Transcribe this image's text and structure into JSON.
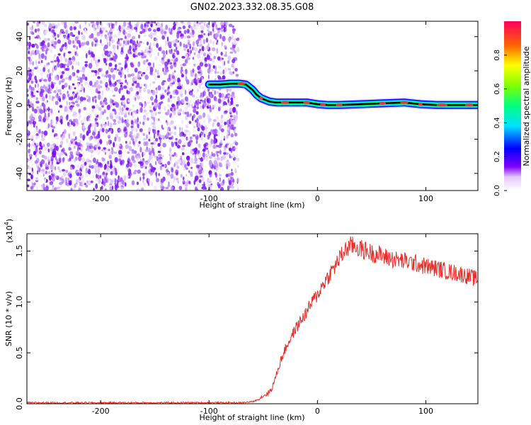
{
  "title": "GN02.2023.332.08.35.G08",
  "chart_data": [
    {
      "type": "heatmap",
      "xlabel": "Height of straight line (km)",
      "ylabel": "Frequency (Hz)",
      "xlim": [
        -268,
        148
      ],
      "ylim": [
        -50,
        49
      ],
      "xticks": [
        -200,
        -100,
        0,
        100
      ],
      "yticks": [
        -40,
        -20,
        0,
        20,
        40
      ],
      "noise_region_x": [
        -268,
        -77
      ],
      "signal_trace": {
        "x": [
          -100,
          -90,
          -80,
          -72,
          -66,
          -60,
          -56,
          -52,
          -48,
          -44,
          -38,
          -30,
          -20,
          -10,
          0,
          10,
          20,
          40,
          60,
          80,
          95,
          110,
          130,
          148
        ],
        "y": [
          12,
          12,
          12.5,
          12.5,
          12,
          9,
          6,
          4,
          3,
          2,
          1.5,
          1.5,
          1.5,
          1.5,
          0.5,
          0,
          0,
          0.5,
          1,
          1.5,
          0.5,
          0,
          0,
          0
        ]
      },
      "colorbar": {
        "label": "Normalized spectral amplitude",
        "range": [
          0,
          1
        ],
        "ticks": [
          "0.0",
          "0.2",
          "0.4",
          "0.6",
          "0.8"
        ]
      }
    },
    {
      "type": "line",
      "xlabel": "Height of straight line (km)",
      "ylabel": "SNR (10 * v/v)",
      "y_multiplier": "(x10",
      "y_multiplier_exp": "4",
      "y_multiplier_close": ")",
      "xlim": [
        -268,
        148
      ],
      "ylim": [
        0,
        1.67
      ],
      "xticks": [
        -200,
        -100,
        0,
        100
      ],
      "yticks": [
        "0.0",
        "0.5",
        "1.0",
        "1.5"
      ],
      "series": [
        {
          "color": "#e8302a",
          "x": [
            -268,
            -240,
            -200,
            -160,
            -120,
            -90,
            -70,
            -60,
            -55,
            -50,
            -46,
            -42,
            -38,
            -34,
            -30,
            -25,
            -20,
            -15,
            -10,
            -5,
            0,
            5,
            10,
            15,
            20,
            25,
            30,
            35,
            40,
            45,
            50,
            55,
            60,
            70,
            80,
            90,
            100,
            110,
            120,
            130,
            140,
            148
          ],
          "y": [
            0.01,
            0.01,
            0.01,
            0.01,
            0.01,
            0.01,
            0.01,
            0.02,
            0.04,
            0.08,
            0.1,
            0.15,
            0.28,
            0.42,
            0.53,
            0.64,
            0.74,
            0.82,
            0.9,
            1.0,
            1.07,
            1.17,
            1.25,
            1.33,
            1.42,
            1.5,
            1.55,
            1.55,
            1.52,
            1.5,
            1.48,
            1.47,
            1.45,
            1.42,
            1.4,
            1.38,
            1.35,
            1.33,
            1.3,
            1.28,
            1.25,
            1.22
          ]
        }
      ]
    }
  ]
}
